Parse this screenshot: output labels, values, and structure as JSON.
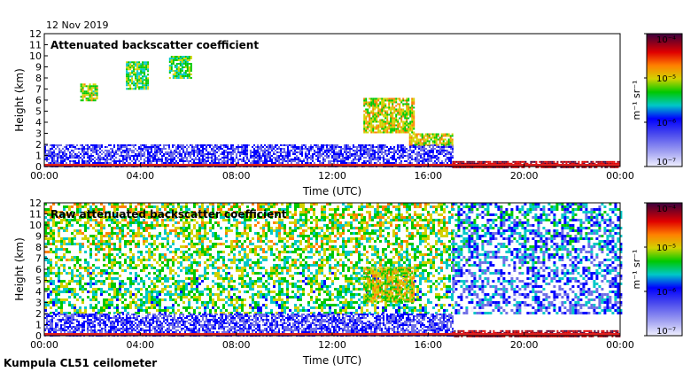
{
  "header": {
    "date": "12 Nov 2019",
    "footer": "Kumpula CL51 ceilometer"
  },
  "chart_data": [
    {
      "type": "heatmap",
      "title": "Attenuated backscatter coefficient",
      "xlabel": "Time (UTC)",
      "ylabel": "Height (km)",
      "x_ticks": [
        "00:00",
        "04:00",
        "08:00",
        "12:00",
        "16:00",
        "20:00",
        "00:00"
      ],
      "y_ticks": [
        0,
        1,
        2,
        3,
        4,
        5,
        6,
        7,
        8,
        9,
        10,
        11,
        12
      ],
      "xlim_hours": [
        0,
        24
      ],
      "ylim": [
        0,
        12
      ],
      "colorbar": {
        "label": "m⁻¹ sr⁻¹",
        "scale": "log",
        "tick_labels": [
          "10⁻⁷",
          "10⁻⁶",
          "10⁻⁵",
          "10⁻⁴"
        ],
        "range": [
          1e-07,
          0.0001
        ],
        "colors": [
          "#f0f0ff",
          "#6f6fe6",
          "#0000ff",
          "#00c8c8",
          "#00c800",
          "#d2d200",
          "#ff8000",
          "#e00000",
          "#800020",
          "#3a0040"
        ]
      },
      "features": [
        {
          "kind": "layer",
          "t": [
            0,
            17
          ],
          "h": [
            0,
            2
          ],
          "level": 0.15
        },
        {
          "kind": "layer",
          "t": [
            17,
            24
          ],
          "h": [
            0,
            0.5
          ],
          "level": 0.85
        },
        {
          "kind": "cloud",
          "t": [
            1.5,
            2.2
          ],
          "h": [
            6,
            7.5
          ],
          "level": 0.5
        },
        {
          "kind": "cloud",
          "t": [
            3.4,
            4.3
          ],
          "h": [
            7,
            9.5
          ],
          "level": 0.45
        },
        {
          "kind": "cloud",
          "t": [
            5.2,
            6.1
          ],
          "h": [
            8,
            10
          ],
          "level": 0.45
        },
        {
          "kind": "cloud",
          "t": [
            13.3,
            15.4
          ],
          "h": [
            3,
            6.2
          ],
          "level": 0.55
        },
        {
          "kind": "cloud",
          "t": [
            15.2,
            17
          ],
          "h": [
            2,
            3
          ],
          "level": 0.55
        }
      ]
    },
    {
      "type": "heatmap",
      "title": "Raw attenuated backscatter coefficient",
      "xlabel": "Time (UTC)",
      "ylabel": "Height (km)",
      "x_ticks": [
        "00:00",
        "04:00",
        "08:00",
        "12:00",
        "16:00",
        "20:00",
        "00:00"
      ],
      "y_ticks": [
        0,
        1,
        2,
        3,
        4,
        5,
        6,
        7,
        8,
        9,
        10,
        11,
        12
      ],
      "xlim_hours": [
        0,
        24
      ],
      "ylim": [
        0,
        12
      ],
      "colorbar": {
        "label": "m⁻¹ sr⁻¹",
        "scale": "log",
        "tick_labels": [
          "10⁻⁷",
          "10⁻⁶",
          "10⁻⁵",
          "10⁻⁴"
        ],
        "range": [
          1e-07,
          0.0001
        ],
        "colors": [
          "#f0f0ff",
          "#6f6fe6",
          "#0000ff",
          "#00c8c8",
          "#00c800",
          "#d2d200",
          "#ff8000",
          "#e00000",
          "#800020",
          "#3a0040"
        ]
      },
      "features": [
        {
          "kind": "noise",
          "t": [
            0,
            17
          ],
          "h": [
            2,
            12
          ],
          "level": 0.4
        },
        {
          "kind": "noise",
          "t": [
            17,
            24
          ],
          "h": [
            2,
            12
          ],
          "level": 0.18
        },
        {
          "kind": "layer",
          "t": [
            0,
            17
          ],
          "h": [
            0,
            2
          ],
          "level": 0.15
        },
        {
          "kind": "layer",
          "t": [
            17,
            24
          ],
          "h": [
            0,
            0.5
          ],
          "level": 0.85
        },
        {
          "kind": "cloud",
          "t": [
            13.3,
            15.4
          ],
          "h": [
            3,
            6.2
          ],
          "level": 0.55
        }
      ]
    }
  ]
}
